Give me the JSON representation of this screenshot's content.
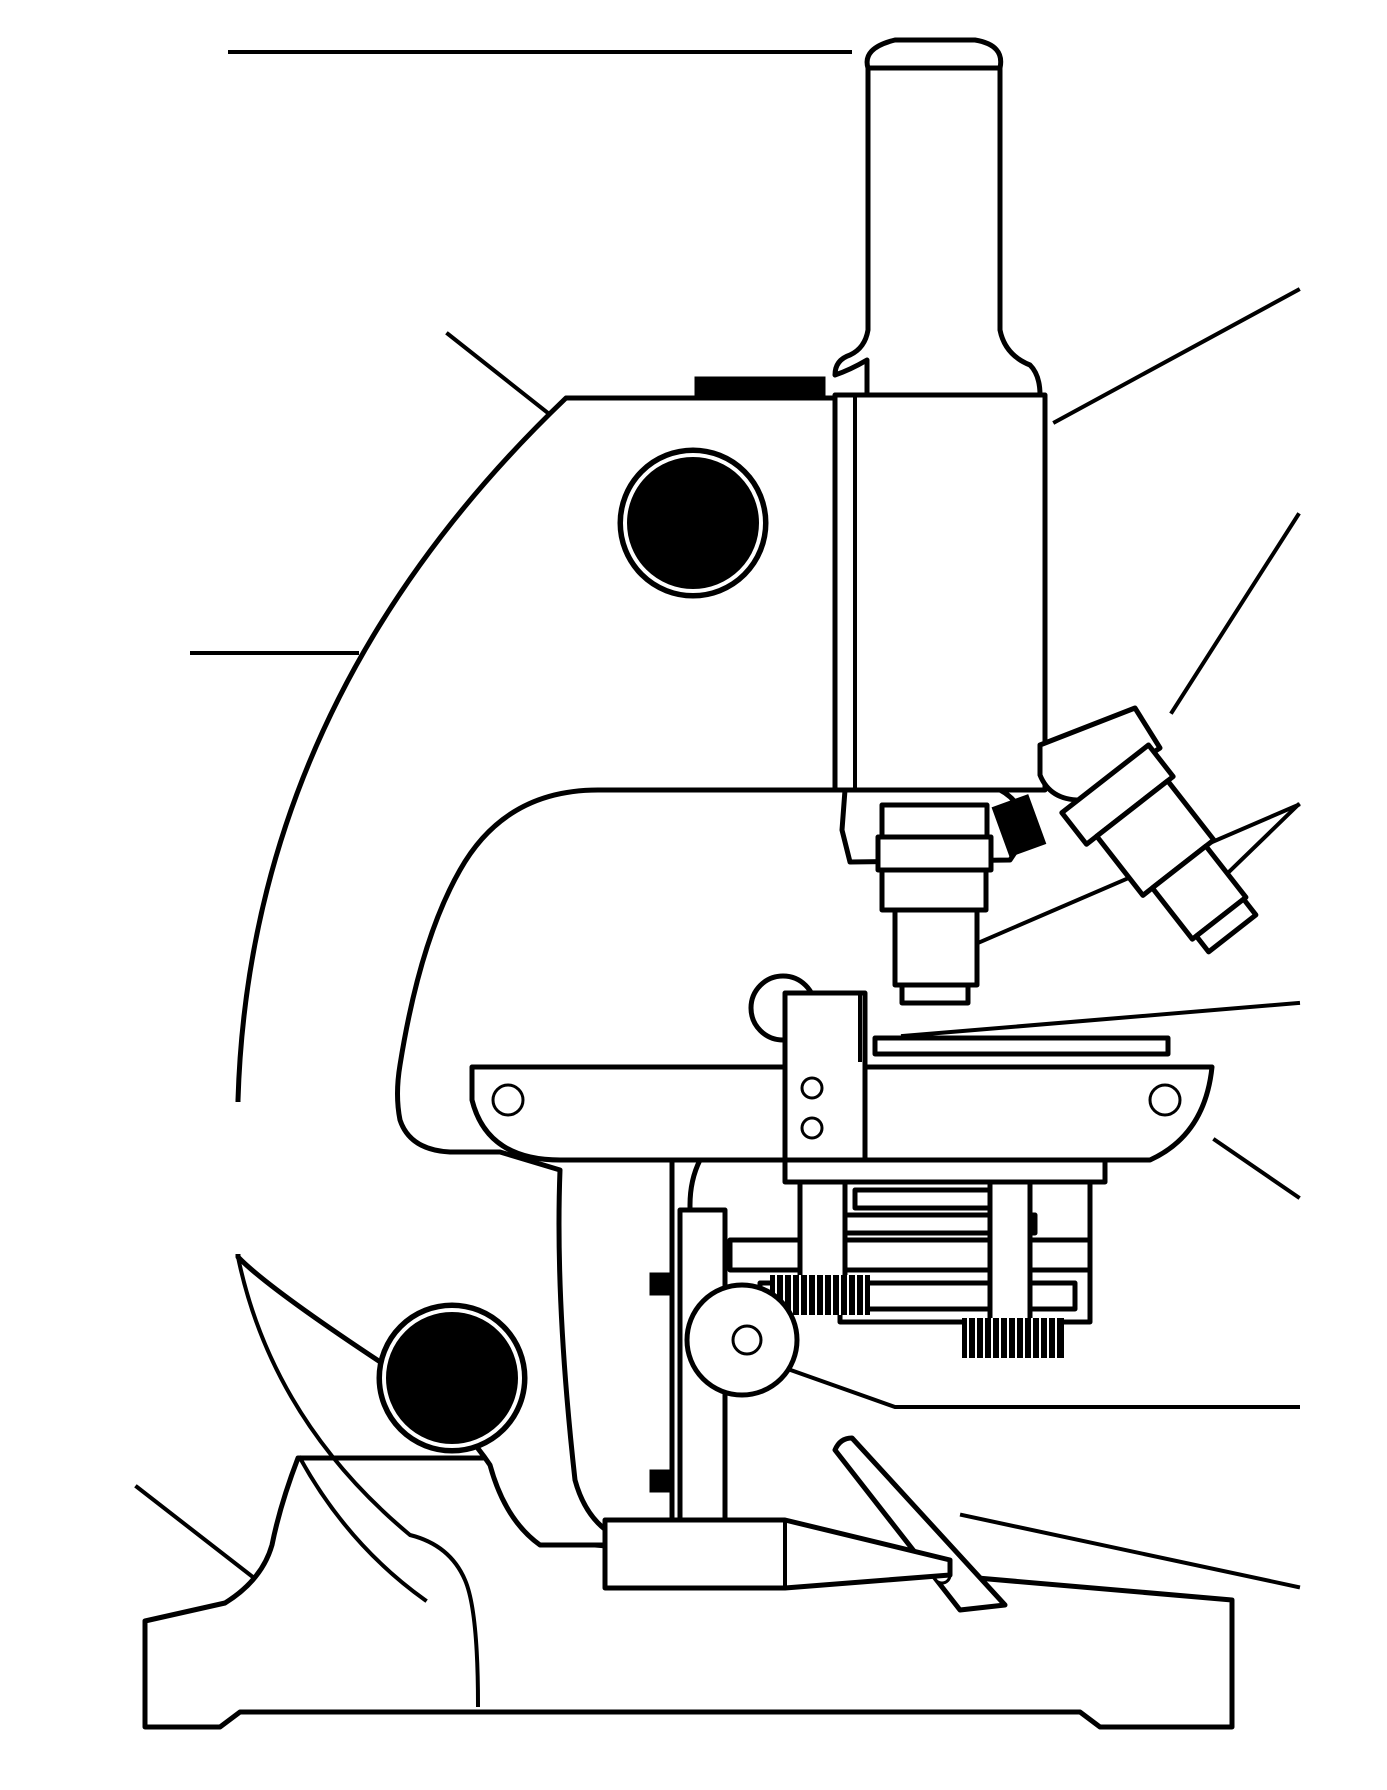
{
  "diagram": {
    "subject": "compound-microscope",
    "label_count": 12,
    "labels": [
      "",
      "",
      "",
      "",
      "",
      "",
      "",
      "",
      "",
      "",
      "",
      ""
    ],
    "colors": {
      "line": "#000000",
      "background": "#ffffff"
    }
  }
}
